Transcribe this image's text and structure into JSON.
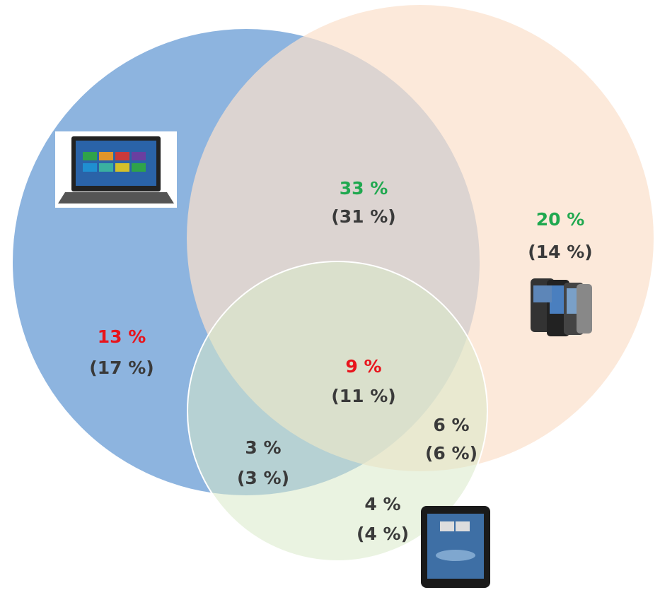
{
  "regions": [
    {
      "primary": "33 %",
      "secondary": "(31 %)",
      "color": "#1fa84f"
    },
    {
      "primary": "20 %",
      "secondary": "(14 %)",
      "color": "#1fa84f"
    },
    {
      "primary": "13 %",
      "secondary": "(17 %)",
      "color": "#e8141c"
    },
    {
      "primary": "9 %",
      "secondary": "(11 %)",
      "color": "#e8141c"
    },
    {
      "primary": "6 %",
      "secondary": "(6 %)",
      "color": "#3a3a3a"
    },
    {
      "primary": "3 %",
      "secondary": "(3 %)",
      "color": "#3a3a3a"
    },
    {
      "primary": "4 %",
      "secondary": "(4 %)",
      "color": "#3a3a3a"
    }
  ]
}
